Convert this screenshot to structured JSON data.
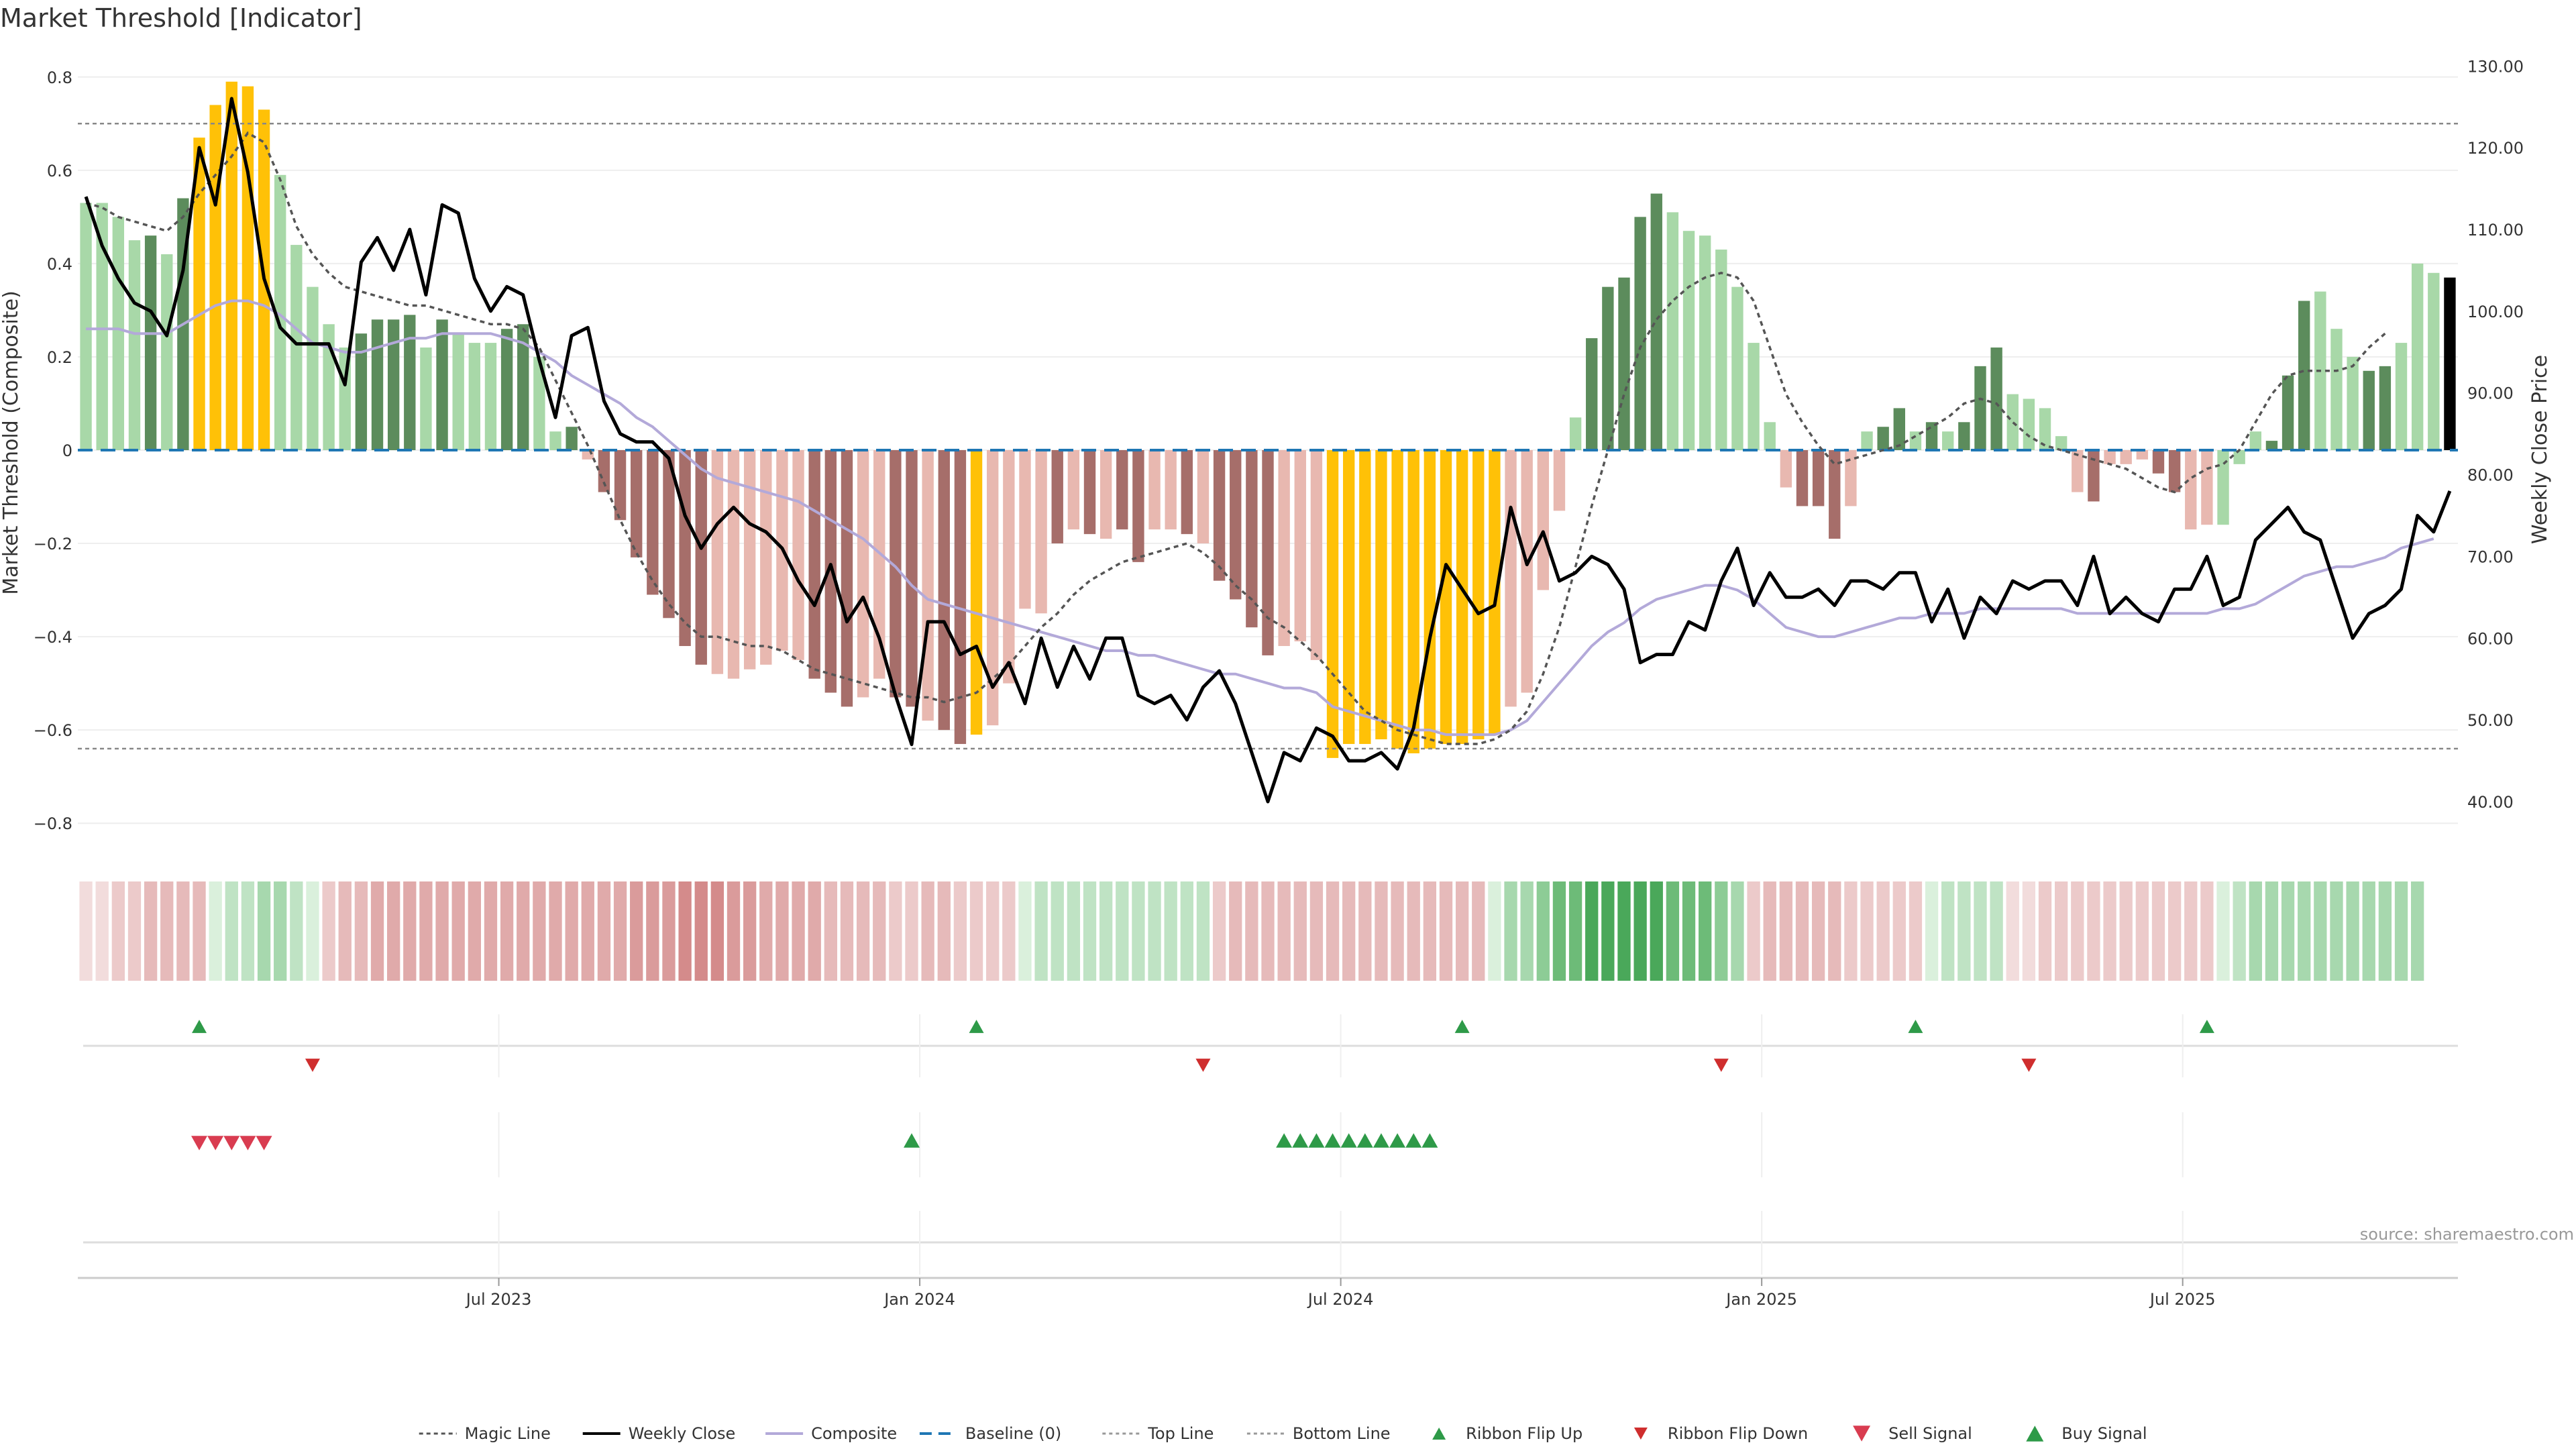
{
  "chart_data": {
    "type": "bar",
    "title": "Market Threshold [Indicator]",
    "ylabel_left": "Market Threshold (Composite)",
    "ylabel_right": "Weekly Close Price",
    "ylim_left": [
      -0.85,
      0.85
    ],
    "ylim_right": [
      34.5,
      131.5
    ],
    "left_ticks": [
      "0.8",
      "0.6",
      "0.4",
      "0.2",
      "0",
      "−0.2",
      "−0.4",
      "−0.6",
      "−0.8"
    ],
    "left_tick_values": [
      0.8,
      0.6,
      0.4,
      0.2,
      0,
      -0.2,
      -0.4,
      -0.6,
      -0.8
    ],
    "right_ticks": [
      "130.00",
      "120.00",
      "110.00",
      "100.00",
      "90.00",
      "80.00",
      "70.00",
      "60.00",
      "50.00",
      "40.00"
    ],
    "right_tick_values": [
      130,
      120,
      110,
      100,
      90,
      80,
      70,
      60,
      50,
      40
    ],
    "x_ticks": [
      {
        "label": "Jul 2023",
        "week": 26
      },
      {
        "label": "Jan 2024",
        "week": 52
      },
      {
        "label": "Jul 2024",
        "week": 78
      },
      {
        "label": "Jan 2025",
        "week": 104
      },
      {
        "label": "Jul 2025",
        "week": 130
      }
    ],
    "top_line": 0.7,
    "bottom_line": -0.64,
    "baseline": 0,
    "composite": [
      0.53,
      0.53,
      0.5,
      0.45,
      0.46,
      0.42,
      0.54,
      0.67,
      0.74,
      0.79,
      0.78,
      0.73,
      0.59,
      0.44,
      0.35,
      0.27,
      0.22,
      0.25,
      0.28,
      0.28,
      0.29,
      0.22,
      0.28,
      0.25,
      0.23,
      0.23,
      0.26,
      0.27,
      0.2,
      0.04,
      0.05,
      -0.02,
      -0.09,
      -0.15,
      -0.23,
      -0.31,
      -0.36,
      -0.42,
      -0.46,
      -0.48,
      -0.49,
      -0.47,
      -0.46,
      -0.43,
      -0.45,
      -0.49,
      -0.52,
      -0.55,
      -0.53,
      -0.49,
      -0.53,
      -0.55,
      -0.58,
      -0.6,
      -0.63,
      -0.61,
      -0.59,
      -0.5,
      -0.34,
      -0.35,
      -0.2,
      -0.17,
      -0.18,
      -0.19,
      -0.17,
      -0.24,
      -0.17,
      -0.17,
      -0.18,
      -0.2,
      -0.28,
      -0.32,
      -0.38,
      -0.44,
      -0.42,
      -0.41,
      -0.45,
      -0.66,
      -0.63,
      -0.63,
      -0.62,
      -0.64,
      -0.65,
      -0.64,
      -0.63,
      -0.63,
      -0.62,
      -0.61,
      -0.55,
      -0.52,
      -0.3,
      -0.13,
      0.07,
      0.24,
      0.35,
      0.37,
      0.5,
      0.55,
      0.51,
      0.47,
      0.46,
      0.43,
      0.35,
      0.23,
      0.06,
      -0.08,
      -0.12,
      -0.12,
      -0.19,
      -0.12,
      0.04,
      0.05,
      0.09,
      0.04,
      0.06,
      0.04,
      0.06,
      0.18,
      0.22,
      0.12,
      0.11,
      0.09,
      0.03,
      -0.09,
      -0.11,
      -0.03,
      -0.03,
      -0.02,
      -0.05,
      -0.09,
      -0.17,
      -0.16,
      -0.16,
      -0.03,
      0.04,
      0.02,
      0.16,
      0.32,
      0.34,
      0.26,
      0.2,
      0.17,
      0.18,
      0.23,
      0.4,
      0.38,
      0.37
    ],
    "bar_colors": [
      "#a8d8a8",
      "#a8d8a8",
      "#a8d8a8",
      "#a8d8a8",
      "#5c8c5c",
      "#a8d8a8",
      "#5c8c5c",
      "#ffc107",
      "#ffc107",
      "#ffc107",
      "#ffc107",
      "#ffc107",
      "#a8d8a8",
      "#a8d8a8",
      "#a8d8a8",
      "#a8d8a8",
      "#a8d8a8",
      "#5c8c5c",
      "#5c8c5c",
      "#5c8c5c",
      "#5c8c5c",
      "#a8d8a8",
      "#5c8c5c",
      "#a8d8a8",
      "#a8d8a8",
      "#a8d8a8",
      "#5c8c5c",
      "#5c8c5c",
      "#a8d8a8",
      "#a8d8a8",
      "#5c8c5c",
      "#e8b8b0",
      "#a66e6a",
      "#a66e6a",
      "#a66e6a",
      "#a66e6a",
      "#a66e6a",
      "#a66e6a",
      "#a66e6a",
      "#e8b8b0",
      "#e8b8b0",
      "#e8b8b0",
      "#e8b8b0",
      "#e8b8b0",
      "#e8b8b0",
      "#a66e6a",
      "#a66e6a",
      "#a66e6a",
      "#e8b8b0",
      "#e8b8b0",
      "#a66e6a",
      "#a66e6a",
      "#e8b8b0",
      "#a66e6a",
      "#a66e6a",
      "#ffc107",
      "#e8b8b0",
      "#e8b8b0",
      "#e8b8b0",
      "#e8b8b0",
      "#a66e6a",
      "#e8b8b0",
      "#a66e6a",
      "#e8b8b0",
      "#a66e6a",
      "#a66e6a",
      "#e8b8b0",
      "#e8b8b0",
      "#a66e6a",
      "#e8b8b0",
      "#a66e6a",
      "#a66e6a",
      "#a66e6a",
      "#a66e6a",
      "#e8b8b0",
      "#e8b8b0",
      "#e8b8b0",
      "#ffc107",
      "#ffc107",
      "#ffc107",
      "#ffc107",
      "#ffc107",
      "#ffc107",
      "#ffc107",
      "#ffc107",
      "#ffc107",
      "#ffc107",
      "#ffc107",
      "#e8b8b0",
      "#e8b8b0",
      "#e8b8b0",
      "#e8b8b0",
      "#a8d8a8",
      "#5c8c5c",
      "#5c8c5c",
      "#5c8c5c",
      "#5c8c5c",
      "#5c8c5c",
      "#a8d8a8",
      "#a8d8a8",
      "#a8d8a8",
      "#a8d8a8",
      "#a8d8a8",
      "#a8d8a8",
      "#a8d8a8",
      "#e8b8b0",
      "#a66e6a",
      "#a66e6a",
      "#a66e6a",
      "#e8b8b0",
      "#a8d8a8",
      "#5c8c5c",
      "#5c8c5c",
      "#a8d8a8",
      "#5c8c5c",
      "#a8d8a8",
      "#5c8c5c",
      "#5c8c5c",
      "#5c8c5c",
      "#a8d8a8",
      "#a8d8a8",
      "#a8d8a8",
      "#a8d8a8",
      "#e8b8b0",
      "#a66e6a",
      "#e8b8b0",
      "#e8b8b0",
      "#e8b8b0",
      "#a66e6a",
      "#a66e6a",
      "#e8b8b0",
      "#e8b8b0",
      "#a8d8a8",
      "#a8d8a8",
      "#a8d8a8",
      "#5c8c5c",
      "#5c8c5c",
      "#5c8c5c",
      "#a8d8a8",
      "#a8d8a8",
      "#a8d8a8",
      "#5c8c5c",
      "#5c8c5c",
      "#a8d8a8",
      "#a8d8a8",
      "#a8d8a8"
    ],
    "magic_line": [
      0.53,
      0.52,
      0.5,
      0.49,
      0.48,
      0.47,
      0.5,
      0.55,
      0.59,
      0.63,
      0.68,
      0.66,
      0.58,
      0.48,
      0.42,
      0.38,
      0.35,
      0.34,
      0.33,
      0.32,
      0.31,
      0.31,
      0.3,
      0.29,
      0.28,
      0.27,
      0.27,
      0.26,
      0.22,
      0.15,
      0.08,
      0.01,
      -0.07,
      -0.15,
      -0.22,
      -0.28,
      -0.33,
      -0.37,
      -0.4,
      -0.4,
      -0.41,
      -0.42,
      -0.42,
      -0.43,
      -0.45,
      -0.47,
      -0.48,
      -0.49,
      -0.5,
      -0.51,
      -0.52,
      -0.53,
      -0.53,
      -0.54,
      -0.53,
      -0.52,
      -0.49,
      -0.46,
      -0.42,
      -0.38,
      -0.35,
      -0.31,
      -0.28,
      -0.26,
      -0.24,
      -0.23,
      -0.22,
      -0.21,
      -0.2,
      -0.22,
      -0.25,
      -0.29,
      -0.32,
      -0.36,
      -0.38,
      -0.41,
      -0.44,
      -0.48,
      -0.52,
      -0.56,
      -0.58,
      -0.6,
      -0.61,
      -0.62,
      -0.63,
      -0.63,
      -0.63,
      -0.62,
      -0.6,
      -0.56,
      -0.48,
      -0.38,
      -0.25,
      -0.12,
      0.0,
      0.12,
      0.22,
      0.28,
      0.32,
      0.35,
      0.37,
      0.38,
      0.37,
      0.32,
      0.22,
      0.12,
      0.06,
      0.01,
      -0.03,
      -0.02,
      -0.01,
      0.0,
      0.01,
      0.03,
      0.05,
      0.07,
      0.1,
      0.11,
      0.1,
      0.06,
      0.03,
      0.01,
      0.0,
      -0.01,
      -0.02,
      -0.03,
      -0.04,
      -0.06,
      -0.08,
      -0.09,
      -0.06,
      -0.04,
      -0.03,
      0.0,
      0.06,
      0.12,
      0.16,
      0.17,
      0.17,
      0.17,
      0.18,
      0.22,
      0.25
    ],
    "composite_line": [
      0.26,
      0.26,
      0.26,
      0.25,
      0.25,
      0.25,
      0.27,
      0.29,
      0.31,
      0.32,
      0.32,
      0.31,
      0.29,
      0.26,
      0.23,
      0.22,
      0.21,
      0.21,
      0.22,
      0.23,
      0.24,
      0.24,
      0.25,
      0.25,
      0.25,
      0.25,
      0.24,
      0.23,
      0.21,
      0.19,
      0.16,
      0.14,
      0.12,
      0.1,
      0.07,
      0.05,
      0.02,
      -0.01,
      -0.04,
      -0.06,
      -0.07,
      -0.08,
      -0.09,
      -0.1,
      -0.11,
      -0.13,
      -0.15,
      -0.17,
      -0.19,
      -0.22,
      -0.25,
      -0.29,
      -0.32,
      -0.33,
      -0.34,
      -0.35,
      -0.36,
      -0.37,
      -0.38,
      -0.39,
      -0.4,
      -0.41,
      -0.42,
      -0.43,
      -0.43,
      -0.44,
      -0.44,
      -0.45,
      -0.46,
      -0.47,
      -0.48,
      -0.48,
      -0.49,
      -0.5,
      -0.51,
      -0.51,
      -0.52,
      -0.55,
      -0.56,
      -0.57,
      -0.58,
      -0.59,
      -0.6,
      -0.6,
      -0.61,
      -0.61,
      -0.61,
      -0.61,
      -0.6,
      -0.58,
      -0.54,
      -0.5,
      -0.46,
      -0.42,
      -0.39,
      -0.37,
      -0.34,
      -0.32,
      -0.31,
      -0.3,
      -0.29,
      -0.29,
      -0.3,
      -0.32,
      -0.35,
      -0.38,
      -0.39,
      -0.4,
      -0.4,
      -0.39,
      -0.38,
      -0.37,
      -0.36,
      -0.36,
      -0.35,
      -0.35,
      -0.35,
      -0.34,
      -0.34,
      -0.34,
      -0.34,
      -0.34,
      -0.34,
      -0.35,
      -0.35,
      -0.35,
      -0.35,
      -0.35,
      -0.35,
      -0.35,
      -0.35,
      -0.35,
      -0.34,
      -0.34,
      -0.33,
      -0.31,
      -0.29,
      -0.27,
      -0.26,
      -0.25,
      -0.25,
      -0.24,
      -0.23,
      -0.21,
      -0.2,
      -0.19
    ],
    "weekly_close": [
      114,
      108,
      104,
      101,
      100,
      97,
      105,
      120,
      113,
      126,
      117,
      104,
      98,
      96,
      96,
      96,
      91,
      106,
      109,
      105,
      110,
      102,
      113,
      112,
      104,
      100,
      103,
      102,
      94,
      87,
      97,
      98,
      89,
      85,
      84,
      84,
      82,
      75,
      71,
      74,
      76,
      74,
      73,
      71,
      67,
      64,
      69,
      62,
      65,
      60,
      53,
      47,
      62,
      62,
      58,
      59,
      54,
      57,
      52,
      60,
      54,
      59,
      55,
      60,
      60,
      53,
      52,
      53,
      50,
      54,
      56,
      52,
      46,
      40,
      46,
      45,
      49,
      48,
      45,
      45,
      46,
      44,
      49,
      60,
      69,
      66,
      63,
      64,
      76,
      69,
      73,
      67,
      68,
      70,
      69,
      66,
      57,
      58,
      58,
      62,
      61,
      67,
      71,
      64,
      68,
      65,
      65,
      66,
      64,
      67,
      67,
      66,
      68,
      68,
      62,
      66,
      60,
      65,
      63,
      67,
      66,
      67,
      67,
      64,
      70,
      63,
      65,
      63,
      62,
      66,
      66,
      70,
      64,
      65,
      72,
      74,
      76,
      73,
      72,
      66,
      60,
      63,
      64,
      66,
      75,
      73,
      78
    ],
    "ribbon_colors": [
      "#f2dcdc",
      "#f2dcdc",
      "#eccaca",
      "#eccaca",
      "#e6baba",
      "#e6baba",
      "#e6baba",
      "#e6baba",
      "#daf0dc",
      "#bfe3c4",
      "#bfe3c4",
      "#a7d8ae",
      "#a7d8ae",
      "#bfe3c4",
      "#daf0dc",
      "#eccaca",
      "#e6baba",
      "#e6baba",
      "#e0aaaa",
      "#e0aaaa",
      "#e0aaaa",
      "#e0aaaa",
      "#e0aaaa",
      "#e0aaaa",
      "#e0aaaa",
      "#e0aaaa",
      "#e0aaaa",
      "#e0aaaa",
      "#e0aaaa",
      "#e0aaaa",
      "#e0aaaa",
      "#e0aaaa",
      "#e0aaaa",
      "#e0aaaa",
      "#da9b9b",
      "#da9b9b",
      "#da9b9b",
      "#d48b8b",
      "#d48b8b",
      "#d48b8b",
      "#da9b9b",
      "#da9b9b",
      "#e0aaaa",
      "#e0aaaa",
      "#e0aaaa",
      "#e0aaaa",
      "#e6baba",
      "#e6baba",
      "#e6baba",
      "#e6baba",
      "#eccaca",
      "#eccaca",
      "#e6baba",
      "#e6baba",
      "#eccaca",
      "#eccaca",
      "#eccaca",
      "#eccaca",
      "#daf0dc",
      "#bfe3c4",
      "#bfe3c4",
      "#bfe3c4",
      "#bfe3c4",
      "#bfe3c4",
      "#bfe3c4",
      "#bfe3c4",
      "#bfe3c4",
      "#bfe3c4",
      "#bfe3c4",
      "#bfe3c4",
      "#eccaca",
      "#e6baba",
      "#e6baba",
      "#e6baba",
      "#e6baba",
      "#e6baba",
      "#e6baba",
      "#e6baba",
      "#e6baba",
      "#e6baba",
      "#e6baba",
      "#e6baba",
      "#e6baba",
      "#e6baba",
      "#e6baba",
      "#e6baba",
      "#e6baba",
      "#daf0dc",
      "#a7d8ae",
      "#a7d8ae",
      "#8dcc96",
      "#6dbb78",
      "#6dbb78",
      "#4aa85a",
      "#4aa85a",
      "#4aa85a",
      "#4aa85a",
      "#4aa85a",
      "#6dbb78",
      "#6dbb78",
      "#6dbb78",
      "#8dcc96",
      "#a7d8ae",
      "#eccaca",
      "#e6baba",
      "#e6baba",
      "#e6baba",
      "#e6baba",
      "#e6baba",
      "#eccaca",
      "#eccaca",
      "#eccaca",
      "#eccaca",
      "#eccaca",
      "#daf0dc",
      "#bfe3c4",
      "#bfe3c4",
      "#bfe3c4",
      "#bfe3c4",
      "#f2dcdc",
      "#f2dcdc",
      "#eccaca",
      "#eccaca",
      "#eccaca",
      "#eccaca",
      "#eccaca",
      "#eccaca",
      "#eccaca",
      "#eccaca",
      "#eccaca",
      "#eccaca",
      "#eccaca",
      "#daf0dc",
      "#bfe3c4",
      "#a7d8ae",
      "#a7d8ae",
      "#a7d8ae",
      "#a7d8ae",
      "#a7d8ae",
      "#a7d8ae",
      "#a7d8ae",
      "#a7d8ae",
      "#a7d8ae",
      "#a7d8ae",
      "#a7d8ae"
    ],
    "ribbon_flip_up_weeks": [
      7,
      55,
      85,
      113,
      131
    ],
    "ribbon_flip_down_weeks": [
      14,
      69,
      101,
      120
    ],
    "sell_signal_weeks": [
      7,
      8,
      9,
      10,
      11
    ],
    "buy_signal_weeks": [
      51,
      74,
      75,
      76,
      77,
      78,
      79,
      80,
      81,
      82,
      83
    ],
    "colors": {
      "bull_strong": "#5c8c5c",
      "bull_light": "#a8d8a8",
      "bear_strong": "#a66e6a",
      "bear_light": "#e8b8b0",
      "extreme": "#ffc107",
      "weekly_close": "#000000",
      "composite": "#b3a9d9",
      "baseline": "#1f77b4",
      "magic": "#555555",
      "flip_up": "#2e9a48",
      "flip_down": "#cf2e2e",
      "sell": "#d93c50",
      "buy": "#2e9a48"
    },
    "legend": [
      "Magic Line",
      "Weekly Close",
      "Composite",
      "Baseline (0)",
      "Top Line",
      "Bottom Line",
      "Ribbon Flip Up",
      "Ribbon Flip Down",
      "Sell Signal",
      "Buy Signal"
    ],
    "source": "source: sharemaestro.com"
  }
}
